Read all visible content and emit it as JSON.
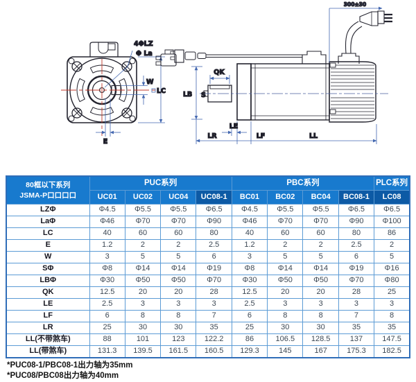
{
  "colors": {
    "header_blue": "#187ace",
    "header_dark_blue": "#0d5aa5",
    "table_border": "#5b9bd5",
    "dimension_blue": "#4468b0",
    "centerline_red": "#c0392b",
    "outline_dark": "#23232e"
  },
  "drawing": {
    "front_view": {
      "labels": {
        "holes": "4ΦLZ",
        "la": "Φ La",
        "w": "W",
        "lc": "LC",
        "e": "E"
      }
    },
    "side_view": {
      "labels": {
        "qk": "QK",
        "lb": "LB",
        "s": "S",
        "le": "LE",
        "lr": "LR",
        "lf": "LF",
        "ll": "LL",
        "cable_length": "300±30"
      }
    }
  },
  "table": {
    "corner_header": {
      "line1": "80框以下系列",
      "line2": "JSMA-P口口口口"
    },
    "series": [
      {
        "label": "PUC系列",
        "span": 4
      },
      {
        "label": "PBC系列",
        "span": 4
      },
      {
        "label": "PLC系列",
        "span": 1
      }
    ],
    "models": [
      "UC01",
      "UC02",
      "UC04",
      "UC08-1",
      "BC01",
      "BC02",
      "BC04",
      "BC08-1",
      "LC08"
    ],
    "highlighted_models": [
      "UC08-1",
      "BC08-1",
      "LC08"
    ],
    "rows": [
      {
        "label": "LZΦ",
        "values": [
          "Φ4.5",
          "Φ5.5",
          "Φ5.5",
          "Φ6.5",
          "Φ4.5",
          "Φ5.5",
          "Φ5.5",
          "Φ6.5",
          "Φ6.5"
        ]
      },
      {
        "label": "LaΦ",
        "values": [
          "Φ46",
          "Φ70",
          "Φ70",
          "Φ90",
          "Φ46",
          "Φ70",
          "Φ70",
          "Φ90",
          "Φ100"
        ]
      },
      {
        "label": "LC",
        "values": [
          "40",
          "60",
          "60",
          "80",
          "40",
          "60",
          "60",
          "80",
          "86"
        ]
      },
      {
        "label": "E",
        "values": [
          "1.2",
          "2",
          "2",
          "2.5",
          "1.2",
          "2",
          "2",
          "2.5",
          "2"
        ]
      },
      {
        "label": "W",
        "values": [
          "3",
          "5",
          "5",
          "6",
          "3",
          "5",
          "5",
          "6",
          "5"
        ]
      },
      {
        "label": "SΦ",
        "values": [
          "Φ8",
          "Φ14",
          "Φ14",
          "Φ19",
          "Φ8",
          "Φ14",
          "Φ14",
          "Φ19",
          "Φ16"
        ]
      },
      {
        "label": "LBΦ",
        "values": [
          "Φ30",
          "Φ50",
          "Φ50",
          "Φ70",
          "Φ30",
          "Φ50",
          "Φ50",
          "Φ70",
          "Φ80"
        ]
      },
      {
        "label": "QK",
        "values": [
          "12.5",
          "20",
          "20",
          "28",
          "12.5",
          "20",
          "20",
          "28",
          "25"
        ]
      },
      {
        "label": "LE",
        "values": [
          "2.5",
          "3",
          "3",
          "3",
          "2.5",
          "3",
          "3",
          "3",
          "3"
        ]
      },
      {
        "label": "LF",
        "values": [
          "6",
          "8",
          "8",
          "7",
          "6",
          "8",
          "8",
          "7",
          "8"
        ]
      },
      {
        "label": "LR",
        "values": [
          "25",
          "30",
          "30",
          "35",
          "25",
          "30",
          "30",
          "35",
          "35"
        ]
      },
      {
        "label": "LL(不带煞车)",
        "values": [
          "88",
          "101",
          "123",
          "122.2",
          "86",
          "106.5",
          "128.5",
          "137",
          "147.5"
        ]
      },
      {
        "label": "LL(带煞车)",
        "values": [
          "131.3",
          "139.5",
          "161.5",
          "160.5",
          "129.3",
          "145",
          "167",
          "175.3",
          "182.5"
        ]
      }
    ]
  },
  "footnotes": [
    "*PUC08-1/PBC08-1出力轴为35mm",
    "*PUC08/PBC08出力轴为40mm"
  ]
}
